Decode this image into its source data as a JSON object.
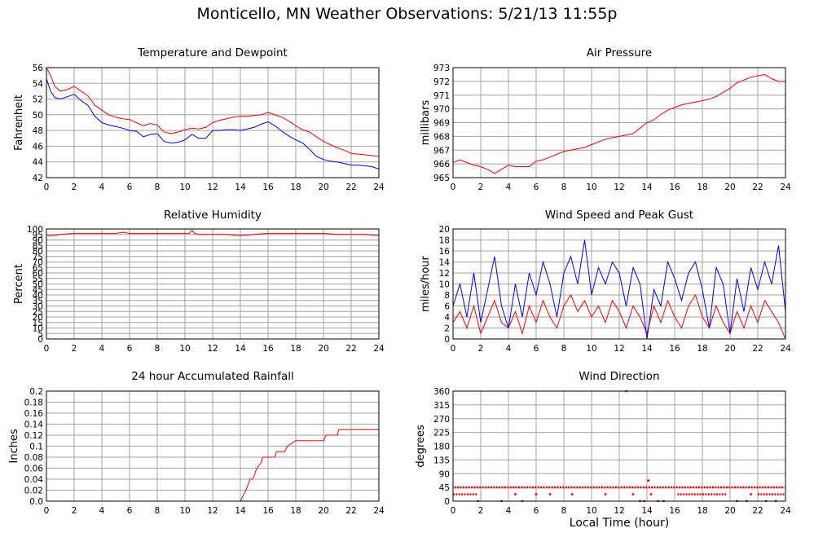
{
  "title": "Monticello, MN Weather Observations: 5/21/13 11:55p",
  "xlabel": "Local Time (hour)",
  "colors": {
    "red": "#ff0000",
    "blue": "#0000ff",
    "grid": "#a0a0a0"
  },
  "chart_data": [
    {
      "id": "temp",
      "type": "line",
      "title": "Temperature and Dewpoint",
      "ylabel": "Fahrenheit",
      "xlim": [
        0,
        24
      ],
      "ylim": [
        42,
        56
      ],
      "yticks": [
        42,
        44,
        46,
        48,
        50,
        52,
        54,
        56
      ],
      "xticks": [
        0,
        2,
        4,
        6,
        8,
        10,
        12,
        14,
        16,
        18,
        20,
        22,
        24
      ],
      "grid": true,
      "series": [
        {
          "color": "#ff0000",
          "x": [
            0,
            0.3,
            0.6,
            1,
            1.5,
            2,
            2.5,
            3,
            3.5,
            4,
            4.5,
            5,
            5.5,
            6,
            6.5,
            7,
            7.5,
            8,
            8.5,
            9,
            9.5,
            10,
            10.5,
            11,
            11.5,
            12,
            12.5,
            13,
            13.5,
            14,
            14.5,
            15,
            15.5,
            16,
            16.5,
            17,
            17.5,
            18,
            18.5,
            19,
            19.5,
            20,
            20.5,
            21,
            21.5,
            22,
            22.5,
            23,
            23.5,
            24
          ],
          "y": [
            56,
            55,
            53.6,
            53,
            53.2,
            53.6,
            53,
            52.4,
            51.2,
            50.6,
            50,
            49.7,
            49.5,
            49.4,
            49,
            48.6,
            48.9,
            48.7,
            47.8,
            47.6,
            47.8,
            48.1,
            48.3,
            48.2,
            48.4,
            49,
            49.3,
            49.5,
            49.7,
            49.8,
            49.8,
            49.9,
            50,
            50.3,
            50,
            49.7,
            49.2,
            48.6,
            48.1,
            47.8,
            47.2,
            46.6,
            46.2,
            45.8,
            45.5,
            45.1,
            45,
            44.9,
            44.8,
            44.7
          ]
        },
        {
          "color": "#0000ff",
          "x": [
            0,
            0.3,
            0.6,
            1,
            1.5,
            2,
            2.5,
            3,
            3.5,
            4,
            4.5,
            5,
            5.5,
            6,
            6.5,
            7,
            7.5,
            8,
            8.5,
            9,
            9.5,
            10,
            10.5,
            11,
            11.5,
            12,
            12.5,
            13,
            13.5,
            14,
            14.5,
            15,
            15.5,
            16,
            16.5,
            17,
            17.5,
            18,
            18.5,
            19,
            19.5,
            20,
            20.5,
            21,
            21.5,
            22,
            22.5,
            23,
            23.5,
            24
          ],
          "y": [
            54.6,
            53,
            52.2,
            52,
            52.3,
            52.6,
            51.8,
            51.2,
            49.8,
            49,
            48.7,
            48.5,
            48.3,
            48,
            47.9,
            47.2,
            47.5,
            47.6,
            46.6,
            46.4,
            46.5,
            46.8,
            47.5,
            47,
            47,
            48,
            48,
            48.1,
            48.1,
            48,
            48.2,
            48.4,
            48.8,
            49.1,
            48.6,
            47.9,
            47.3,
            46.8,
            46.4,
            45.6,
            44.7,
            44.3,
            44.1,
            44,
            43.8,
            43.6,
            43.6,
            43.5,
            43.4,
            43.1
          ]
        }
      ]
    },
    {
      "id": "pressure",
      "type": "line",
      "title": "Air Pressure",
      "ylabel": "millibars",
      "xlim": [
        0,
        24
      ],
      "ylim": [
        965,
        973
      ],
      "yticks": [
        965,
        966,
        967,
        968,
        969,
        970,
        971,
        972,
        973
      ],
      "xticks": [
        0,
        2,
        4,
        6,
        8,
        10,
        12,
        14,
        16,
        18,
        20,
        22,
        24
      ],
      "grid": true,
      "series": [
        {
          "color": "#ff0000",
          "x": [
            0,
            0.5,
            1,
            1.5,
            2,
            2.5,
            3,
            3.5,
            4,
            4.5,
            5,
            5.5,
            6,
            6.5,
            7,
            7.5,
            8,
            8.5,
            9,
            9.5,
            10,
            10.5,
            11,
            11.5,
            12,
            12.5,
            13,
            13.5,
            14,
            14.5,
            15,
            15.5,
            16,
            16.5,
            17,
            17.5,
            18,
            18.5,
            19,
            19.5,
            20,
            20.5,
            21,
            21.5,
            22,
            22.5,
            23,
            23.5,
            24
          ],
          "y": [
            966.1,
            966.3,
            966.1,
            965.9,
            965.8,
            965.6,
            965.3,
            965.6,
            965.9,
            965.8,
            965.8,
            965.8,
            966.2,
            966.3,
            966.5,
            966.7,
            966.9,
            967,
            967.1,
            967.2,
            967.4,
            967.6,
            967.8,
            967.9,
            968,
            968.1,
            968.2,
            968.6,
            969,
            969.2,
            969.6,
            969.9,
            970.1,
            970.3,
            970.4,
            970.5,
            970.6,
            970.7,
            970.9,
            971.2,
            971.5,
            971.9,
            972.1,
            972.3,
            972.4,
            972.5,
            972.2,
            972,
            972
          ]
        }
      ]
    },
    {
      "id": "humidity",
      "type": "line",
      "title": "Relative Humidity",
      "ylabel": "Percent",
      "xlim": [
        0,
        24
      ],
      "ylim": [
        0,
        100
      ],
      "yticks": [
        0,
        5,
        10,
        15,
        20,
        25,
        30,
        35,
        40,
        45,
        50,
        55,
        60,
        65,
        70,
        75,
        80,
        85,
        90,
        95,
        100
      ],
      "xticks": [
        0,
        2,
        4,
        6,
        8,
        10,
        12,
        14,
        16,
        18,
        20,
        22,
        24
      ],
      "grid": true,
      "series": [
        {
          "color": "#ff0000",
          "x": [
            0,
            0.5,
            1,
            2,
            3,
            4,
            5,
            5.5,
            6,
            7,
            8,
            9,
            10,
            10.3,
            10.5,
            10.7,
            11,
            12,
            13,
            14,
            15,
            16,
            17,
            18,
            19,
            20,
            21,
            22,
            23,
            24
          ],
          "y": [
            94,
            94,
            95,
            96,
            96,
            96,
            96,
            97,
            96,
            96,
            96,
            96,
            96,
            96,
            99,
            96,
            95,
            95,
            95,
            94,
            95,
            96,
            96,
            96,
            96,
            96,
            95,
            95,
            95,
            94
          ]
        }
      ]
    },
    {
      "id": "wind",
      "type": "line",
      "title": "Wind Speed and Peak Gust",
      "ylabel": "miles/hour",
      "xlim": [
        0,
        24
      ],
      "ylim": [
        0,
        20
      ],
      "yticks": [
        0,
        2,
        4,
        6,
        8,
        10,
        12,
        14,
        16,
        18,
        20
      ],
      "xticks": [
        0,
        2,
        4,
        6,
        8,
        10,
        12,
        14,
        16,
        18,
        20,
        22,
        24
      ],
      "grid": true,
      "series": [
        {
          "color": "#ff0000",
          "x": [
            0,
            0.5,
            1,
            1.5,
            2,
            2.5,
            3,
            3.5,
            4,
            4.5,
            5,
            5.5,
            6,
            6.5,
            7,
            7.5,
            8,
            8.5,
            9,
            9.5,
            10,
            10.5,
            11,
            11.5,
            12,
            12.5,
            13,
            13.5,
            14,
            14.5,
            15,
            15.5,
            16,
            16.5,
            17,
            17.5,
            18,
            18.5,
            19,
            19.5,
            20,
            20.5,
            21,
            21.5,
            22,
            22.5,
            23,
            23.5,
            24
          ],
          "y": [
            3,
            5,
            2,
            6,
            1,
            4,
            7,
            3,
            2,
            5,
            1,
            6,
            3,
            7,
            4,
            2,
            6,
            8,
            5,
            7,
            4,
            6,
            3,
            7,
            5,
            2,
            6,
            4,
            1,
            6,
            3,
            7,
            4,
            2,
            6,
            8,
            4,
            2,
            6,
            3,
            1,
            5,
            2,
            6,
            3,
            7,
            5,
            3,
            0
          ]
        },
        {
          "color": "#0000ff",
          "x": [
            0,
            0.5,
            1,
            1.5,
            2,
            2.5,
            3,
            3.5,
            4,
            4.5,
            5,
            5.5,
            6,
            6.5,
            7,
            7.5,
            8,
            8.5,
            9,
            9.5,
            10,
            10.5,
            11,
            11.5,
            12,
            12.5,
            13,
            13.5,
            14,
            14.5,
            15,
            15.5,
            16,
            16.5,
            17,
            17.5,
            18,
            18.5,
            19,
            19.5,
            20,
            20.5,
            21,
            21.5,
            22,
            22.5,
            23,
            23.5,
            24
          ],
          "y": [
            6,
            10,
            4,
            12,
            3,
            9,
            15,
            6,
            2,
            10,
            4,
            12,
            8,
            14,
            10,
            4,
            12,
            15,
            10,
            18,
            8,
            13,
            10,
            14,
            12,
            6,
            13,
            10,
            0,
            9,
            6,
            14,
            11,
            7,
            12,
            14,
            9,
            2,
            13,
            10,
            1,
            11,
            5,
            13,
            9,
            14,
            10,
            17,
            5
          ]
        }
      ]
    },
    {
      "id": "rain",
      "type": "line",
      "title": "24 hour Accumulated Rainfall",
      "ylabel": "Inches",
      "xlim": [
        0,
        24
      ],
      "ylim": [
        0,
        0.2
      ],
      "yticks": [
        0.0,
        0.02,
        0.04,
        0.06,
        0.08,
        0.1,
        0.12,
        0.14,
        0.16,
        0.18,
        0.2
      ],
      "ytick_labels": [
        "0.0",
        "0.02",
        "0.04",
        "0.06",
        "0.08",
        "0.1",
        "0.12",
        "0.14",
        "0.16",
        "0.18",
        "0.2"
      ],
      "xticks": [
        0,
        2,
        4,
        6,
        8,
        10,
        12,
        14,
        16,
        18,
        20,
        22,
        24
      ],
      "grid": true,
      "series": [
        {
          "color": "#ff0000",
          "x": [
            0,
            14.0,
            14.2,
            14.4,
            14.7,
            14.9,
            15.2,
            15.5,
            15.6,
            16.5,
            16.6,
            17.2,
            17.4,
            18.0,
            20.0,
            20.2,
            21.0,
            21.1,
            24
          ],
          "y": [
            0,
            0,
            0.01,
            0.02,
            0.04,
            0.04,
            0.06,
            0.07,
            0.08,
            0.08,
            0.09,
            0.09,
            0.1,
            0.11,
            0.11,
            0.12,
            0.12,
            0.13,
            0.13
          ]
        }
      ]
    },
    {
      "id": "direction",
      "type": "scatter",
      "title": "Wind Direction",
      "ylabel": "degrees",
      "xlim": [
        0,
        24
      ],
      "ylim": [
        0,
        360
      ],
      "yticks": [
        0,
        45,
        90,
        135,
        180,
        225,
        270,
        315,
        360
      ],
      "xticks": [
        0,
        2,
        4,
        6,
        8,
        10,
        12,
        14,
        16,
        18,
        20,
        22,
        24
      ],
      "grid": true,
      "series": [
        {
          "color": "#ff0000",
          "segments": [
            {
              "y": 45,
              "x_start": 0.1,
              "x_end": 23.9
            },
            {
              "y": 22.5,
              "x_start": 0.0,
              "x_end": 1.8
            },
            {
              "y": 22.5,
              "x_start": 16.2,
              "x_end": 19.8
            },
            {
              "y": 22.5,
              "x_start": 22.0,
              "x_end": 24.0
            }
          ],
          "points": [
            {
              "x": 1.8,
              "y": 0
            },
            {
              "x": 3.5,
              "y": 0
            },
            {
              "x": 4.5,
              "y": 22.5
            },
            {
              "x": 5.0,
              "y": 0
            },
            {
              "x": 6.0,
              "y": 22.5
            },
            {
              "x": 7.0,
              "y": 22.5
            },
            {
              "x": 8.6,
              "y": 22.5
            },
            {
              "x": 11.0,
              "y": 22.5
            },
            {
              "x": 12.5,
              "y": 360
            },
            {
              "x": 13.0,
              "y": 22.5
            },
            {
              "x": 13.5,
              "y": 0
            },
            {
              "x": 13.8,
              "y": 0
            },
            {
              "x": 14.1,
              "y": 67.5
            },
            {
              "x": 14.3,
              "y": 22.5
            },
            {
              "x": 14.8,
              "y": 0
            },
            {
              "x": 15.2,
              "y": 0
            },
            {
              "x": 20.5,
              "y": 0
            },
            {
              "x": 21.2,
              "y": 0
            },
            {
              "x": 21.5,
              "y": 22.5
            },
            {
              "x": 22.6,
              "y": 0
            },
            {
              "x": 23.3,
              "y": 0
            }
          ]
        }
      ]
    }
  ]
}
